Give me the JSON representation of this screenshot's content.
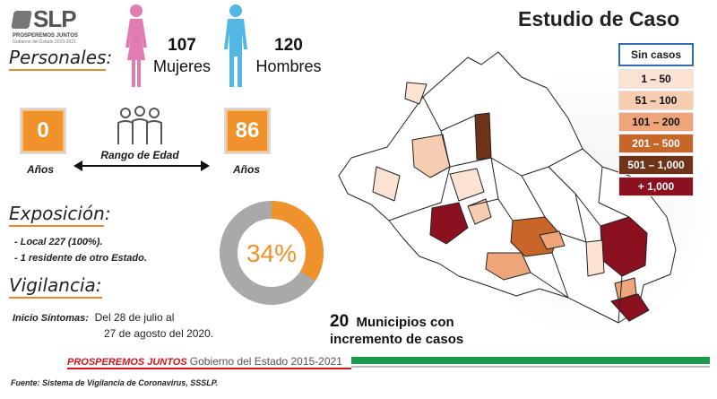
{
  "logo": {
    "main": "SLP",
    "sub": "PROSPEREMOS JUNTOS",
    "sub2": "Gobierno del Estado 2015-2021"
  },
  "title": "Estudio de Caso",
  "personales": {
    "label": "Personales:",
    "mujeres_count": "107",
    "mujeres_label": "Mujeres",
    "hombres_count": "120",
    "hombres_label": "Hombres"
  },
  "edad": {
    "min": "0",
    "max": "86",
    "min_label": "Años",
    "max_label": "Años",
    "rango_label": "Rango de Edad"
  },
  "exposicion": {
    "label": "Exposición:",
    "lines": [
      "- Local 227 (100%).",
      "- 1 residente de otro Estado."
    ]
  },
  "donut": {
    "text": "34%",
    "fraction": 0.34,
    "colors": {
      "fill": "#f0922b",
      "track": "#a9a9a9"
    }
  },
  "vigilancia": {
    "label": "Vigilancia:",
    "inicio_label": "Inicio Síntomas:",
    "line1": "Del 28 de julio al",
    "line2": "27 de agosto del 2020."
  },
  "legend": {
    "header": "Sin casos",
    "items": [
      {
        "label": "1 – 50",
        "color": "#fbe2d2",
        "text": "#111"
      },
      {
        "label": "51 – 100",
        "color": "#f6cdb0",
        "text": "#111"
      },
      {
        "label": "101 – 200",
        "color": "#eea57a",
        "text": "#111"
      },
      {
        "label": "201 – 500",
        "color": "#c8662a",
        "text": "#ffffff"
      },
      {
        "label": "501 – 1,000",
        "color": "#6e3318",
        "text": "#ffffff"
      },
      {
        "label": "+ 1,000",
        "color": "#8b1020",
        "text": "#ffffff"
      }
    ]
  },
  "municipios": {
    "count": "20",
    "line1": "Municipios con",
    "line2": "incremento de casos"
  },
  "footer": {
    "pj": "PROSPEREMOS JUNTOS",
    "gob": "Gobierno del Estado 2015-2021",
    "fuente": "Fuente: Sistema de Vigilancia de Coronavirus, SSSLP."
  },
  "colors": {
    "orange": "#f0922b",
    "pink": "#e07cb0",
    "blue": "#52b8e3",
    "green": "#1f9a4b",
    "red": "#d3141d"
  },
  "icons": [
    "female-figure-icon",
    "male-figure-icon",
    "group-people-icon",
    "double-arrow-icon"
  ]
}
